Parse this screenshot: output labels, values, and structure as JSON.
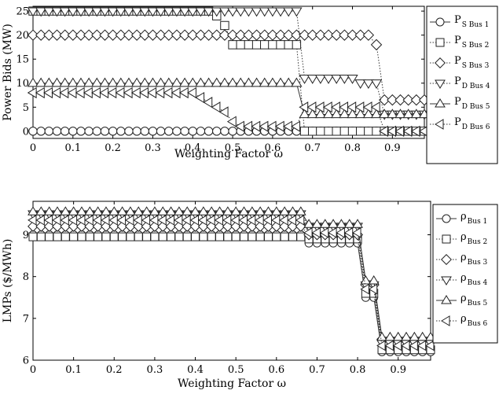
{
  "chart_data": [
    {
      "type": "line",
      "xlabel": "Weighting Factor ω",
      "ylabel": "Power Bids (MW)",
      "xlim": [
        0,
        0.98
      ],
      "ylim": [
        -1.5,
        26
      ],
      "xticks": [
        "0",
        "0.1",
        "0.2",
        "0.3",
        "0.4",
        "0.5",
        "0.6",
        "0.7",
        "0.8",
        "0.9"
      ],
      "yticks": [
        "0",
        "5",
        "10",
        "15",
        "20",
        "25"
      ],
      "legend_position": "right",
      "series": [
        {
          "label": "P",
          "sub": "S Bus 1",
          "marker": "circle",
          "dash": "solid",
          "points": [
            [
              0,
              0
            ],
            [
              0.98,
              0
            ]
          ]
        },
        {
          "label": "P",
          "sub": "S Bus 2",
          "marker": "square",
          "dash": "dotted",
          "points": [
            [
              0,
              25
            ],
            [
              0.44,
              25
            ],
            [
              0.46,
              24
            ],
            [
              0.48,
              22
            ],
            [
              0.5,
              18
            ],
            [
              0.66,
              18
            ],
            [
              0.68,
              0
            ],
            [
              0.98,
              0
            ]
          ]
        },
        {
          "label": "P",
          "sub": "S Bus 3",
          "marker": "diamond",
          "dash": "dotted",
          "points": [
            [
              0,
              20
            ],
            [
              0.84,
              20
            ],
            [
              0.86,
              18
            ],
            [
              0.88,
              6.5
            ],
            [
              0.98,
              6.5
            ]
          ]
        },
        {
          "label": "P",
          "sub": "D Bus 4",
          "marker": "triangle-down",
          "dash": "dotted",
          "points": [
            [
              0,
              25
            ],
            [
              0.66,
              25
            ],
            [
              0.68,
              11
            ],
            [
              0.8,
              11
            ],
            [
              0.82,
              10
            ],
            [
              0.84,
              10
            ],
            [
              0.86,
              10
            ],
            [
              0.88,
              3.5
            ],
            [
              0.98,
              3.5
            ]
          ]
        },
        {
          "label": "P",
          "sub": "D Bus 5",
          "marker": "triangle-up",
          "dash": "solid",
          "points": [
            [
              0,
              10
            ],
            [
              0.66,
              10
            ],
            [
              0.68,
              3.5
            ],
            [
              0.84,
              3.5
            ],
            [
              0.86,
              3.5
            ],
            [
              0.88,
              3.5
            ],
            [
              0.98,
              3.5
            ]
          ]
        },
        {
          "label": "P",
          "sub": "D Bus 6",
          "marker": "triangle-left",
          "dash": "dotted",
          "points": [
            [
              0,
              8
            ],
            [
              0.4,
              8
            ],
            [
              0.42,
              7
            ],
            [
              0.44,
              6
            ],
            [
              0.46,
              5
            ],
            [
              0.48,
              4
            ],
            [
              0.5,
              2
            ],
            [
              0.52,
              1
            ],
            [
              0.66,
              1
            ],
            [
              0.68,
              5
            ],
            [
              0.84,
              5
            ],
            [
              0.86,
              5
            ],
            [
              0.88,
              0
            ],
            [
              0.98,
              0
            ]
          ]
        }
      ]
    },
    {
      "type": "line",
      "xlabel": "Weighting Factor ω",
      "ylabel": "LMPs ($/MWh)",
      "xlim": [
        0,
        0.98
      ],
      "ylim": [
        6,
        9.8
      ],
      "xticks": [
        "0",
        "0.1",
        "0.2",
        "0.3",
        "0.4",
        "0.5",
        "0.6",
        "0.7",
        "0.8",
        "0.9"
      ],
      "yticks": [
        "6",
        "7",
        "8",
        "9"
      ],
      "legend_position": "right",
      "series": [
        {
          "label": "ρ",
          "sub": "Bus 1",
          "marker": "circle",
          "dash": "solid",
          "points": [
            [
              0,
              9.0
            ],
            [
              0.66,
              9.0
            ],
            [
              0.68,
              8.8
            ],
            [
              0.8,
              8.8
            ],
            [
              0.82,
              7.5
            ],
            [
              0.84,
              7.5
            ],
            [
              0.86,
              6.2
            ],
            [
              0.98,
              6.2
            ]
          ]
        },
        {
          "label": "ρ",
          "sub": "Bus 2",
          "marker": "square",
          "dash": "dotted",
          "points": [
            [
              0,
              8.95
            ],
            [
              0.66,
              8.95
            ],
            [
              0.68,
              8.9
            ],
            [
              0.8,
              8.9
            ],
            [
              0.82,
              7.6
            ],
            [
              0.84,
              7.6
            ],
            [
              0.86,
              6.25
            ],
            [
              0.98,
              6.25
            ]
          ]
        },
        {
          "label": "ρ",
          "sub": "Bus 3",
          "marker": "diamond",
          "dash": "dotted",
          "points": [
            [
              0,
              9.2
            ],
            [
              0.66,
              9.2
            ],
            [
              0.68,
              9.0
            ],
            [
              0.8,
              9.0
            ],
            [
              0.82,
              7.8
            ],
            [
              0.84,
              7.8
            ],
            [
              0.86,
              6.5
            ],
            [
              0.98,
              6.5
            ]
          ]
        },
        {
          "label": "ρ",
          "sub": "Bus 4",
          "marker": "triangle-down",
          "dash": "dotted",
          "points": [
            [
              0,
              9.5
            ],
            [
              0.66,
              9.5
            ],
            [
              0.68,
              9.2
            ],
            [
              0.8,
              9.2
            ],
            [
              0.82,
              7.8
            ],
            [
              0.84,
              7.8
            ],
            [
              0.86,
              6.4
            ],
            [
              0.98,
              6.4
            ]
          ]
        },
        {
          "label": "ρ",
          "sub": "Bus 5",
          "marker": "triangle-up",
          "dash": "solid",
          "points": [
            [
              0,
              9.55
            ],
            [
              0.66,
              9.55
            ],
            [
              0.68,
              9.25
            ],
            [
              0.8,
              9.25
            ],
            [
              0.82,
              7.9
            ],
            [
              0.84,
              7.9
            ],
            [
              0.86,
              6.55
            ],
            [
              0.98,
              6.55
            ]
          ]
        },
        {
          "label": "ρ",
          "sub": "Bus 6",
          "marker": "triangle-left",
          "dash": "dotted",
          "points": [
            [
              0,
              9.35
            ],
            [
              0.66,
              9.35
            ],
            [
              0.68,
              9.05
            ],
            [
              0.8,
              9.05
            ],
            [
              0.82,
              7.7
            ],
            [
              0.84,
              7.7
            ],
            [
              0.86,
              6.35
            ],
            [
              0.98,
              6.35
            ]
          ]
        }
      ]
    }
  ]
}
